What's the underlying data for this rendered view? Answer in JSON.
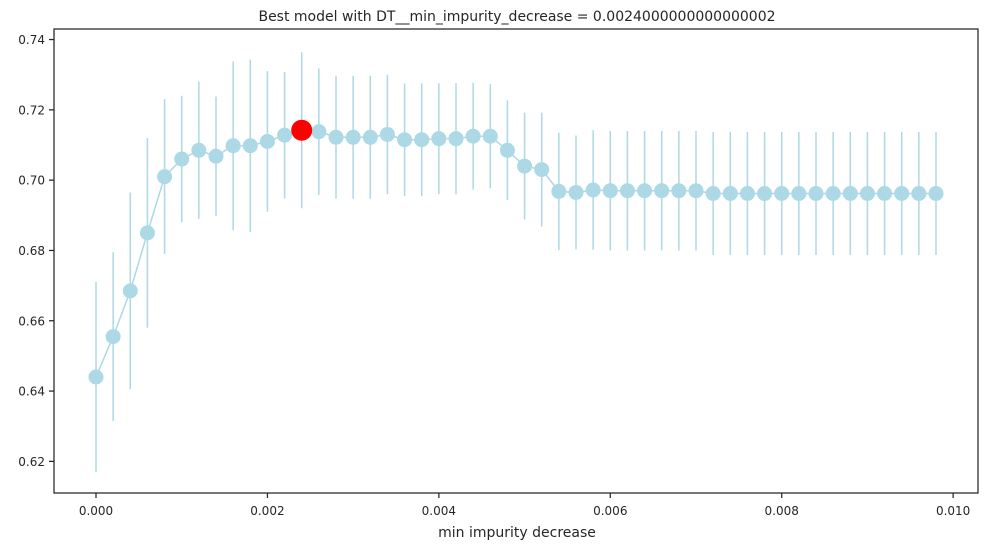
{
  "chart_data": {
    "type": "scatter",
    "title": "Best model with DT__min_impurity_decrease = 0.0024000000000000002",
    "xlabel": "min impurity decrease",
    "ylabel": "",
    "xlim": [
      -0.00049,
      0.01029
    ],
    "ylim": [
      0.611,
      0.743
    ],
    "xticks": [
      0.0,
      0.002,
      0.004,
      0.006,
      0.008,
      0.01
    ],
    "xtick_labels": [
      "0.000",
      "0.002",
      "0.004",
      "0.006",
      "0.008",
      "0.010"
    ],
    "yticks": [
      0.62,
      0.64,
      0.66,
      0.68,
      0.7,
      0.72,
      0.74
    ],
    "ytick_labels": [
      "0.62",
      "0.64",
      "0.66",
      "0.68",
      "0.70",
      "0.72",
      "0.74"
    ],
    "grid": false,
    "series": [
      {
        "color": "#add8e6",
        "x": [
          0.0,
          0.0002,
          0.0004,
          0.0006,
          0.0008,
          0.001,
          0.0012,
          0.0014,
          0.0016,
          0.0018,
          0.002,
          0.0022,
          0.0024,
          0.0026,
          0.0028,
          0.003,
          0.0032,
          0.0034,
          0.0036,
          0.0038,
          0.004,
          0.0042,
          0.0044,
          0.0046,
          0.0048,
          0.005,
          0.0052,
          0.0054,
          0.0056,
          0.0058,
          0.006,
          0.0062,
          0.0064,
          0.0066,
          0.0068,
          0.007,
          0.0072,
          0.0074,
          0.0076,
          0.0078,
          0.008,
          0.0082,
          0.0084,
          0.0086,
          0.0088,
          0.009,
          0.0092,
          0.0094,
          0.0096,
          0.0098
        ],
        "y": [
          0.644,
          0.6555,
          0.6685,
          0.685,
          0.701,
          0.706,
          0.7085,
          0.7068,
          0.7098,
          0.7098,
          0.711,
          0.7128,
          0.7142,
          0.7138,
          0.7122,
          0.7122,
          0.7122,
          0.713,
          0.7115,
          0.7115,
          0.7118,
          0.7118,
          0.7125,
          0.7125,
          0.7085,
          0.704,
          0.703,
          0.6968,
          0.6965,
          0.6972,
          0.697,
          0.697,
          0.697,
          0.697,
          0.697,
          0.697,
          0.6962,
          0.6962,
          0.6962,
          0.6962,
          0.6962,
          0.6962,
          0.6962,
          0.6962,
          0.6962,
          0.6962,
          0.6962,
          0.6962,
          0.6962,
          0.6962
        ],
        "yerr": [
          0.027,
          0.024,
          0.028,
          0.027,
          0.022,
          0.018,
          0.0195,
          0.017,
          0.024,
          0.0245,
          0.02,
          0.018,
          0.0222,
          0.018,
          0.0175,
          0.0175,
          0.0175,
          0.017,
          0.016,
          0.016,
          0.0158,
          0.0158,
          0.0152,
          0.0148,
          0.0142,
          0.0152,
          0.0162,
          0.0167,
          0.0162,
          0.017,
          0.017,
          0.017,
          0.017,
          0.017,
          0.017,
          0.017,
          0.0175,
          0.0175,
          0.0175,
          0.0175,
          0.0175,
          0.0175,
          0.0175,
          0.0175,
          0.0175,
          0.0175,
          0.0175,
          0.0175,
          0.0175,
          0.0175
        ]
      }
    ],
    "highlight": {
      "x": 0.0024,
      "y": 0.7142,
      "color": "#ff0000"
    }
  }
}
